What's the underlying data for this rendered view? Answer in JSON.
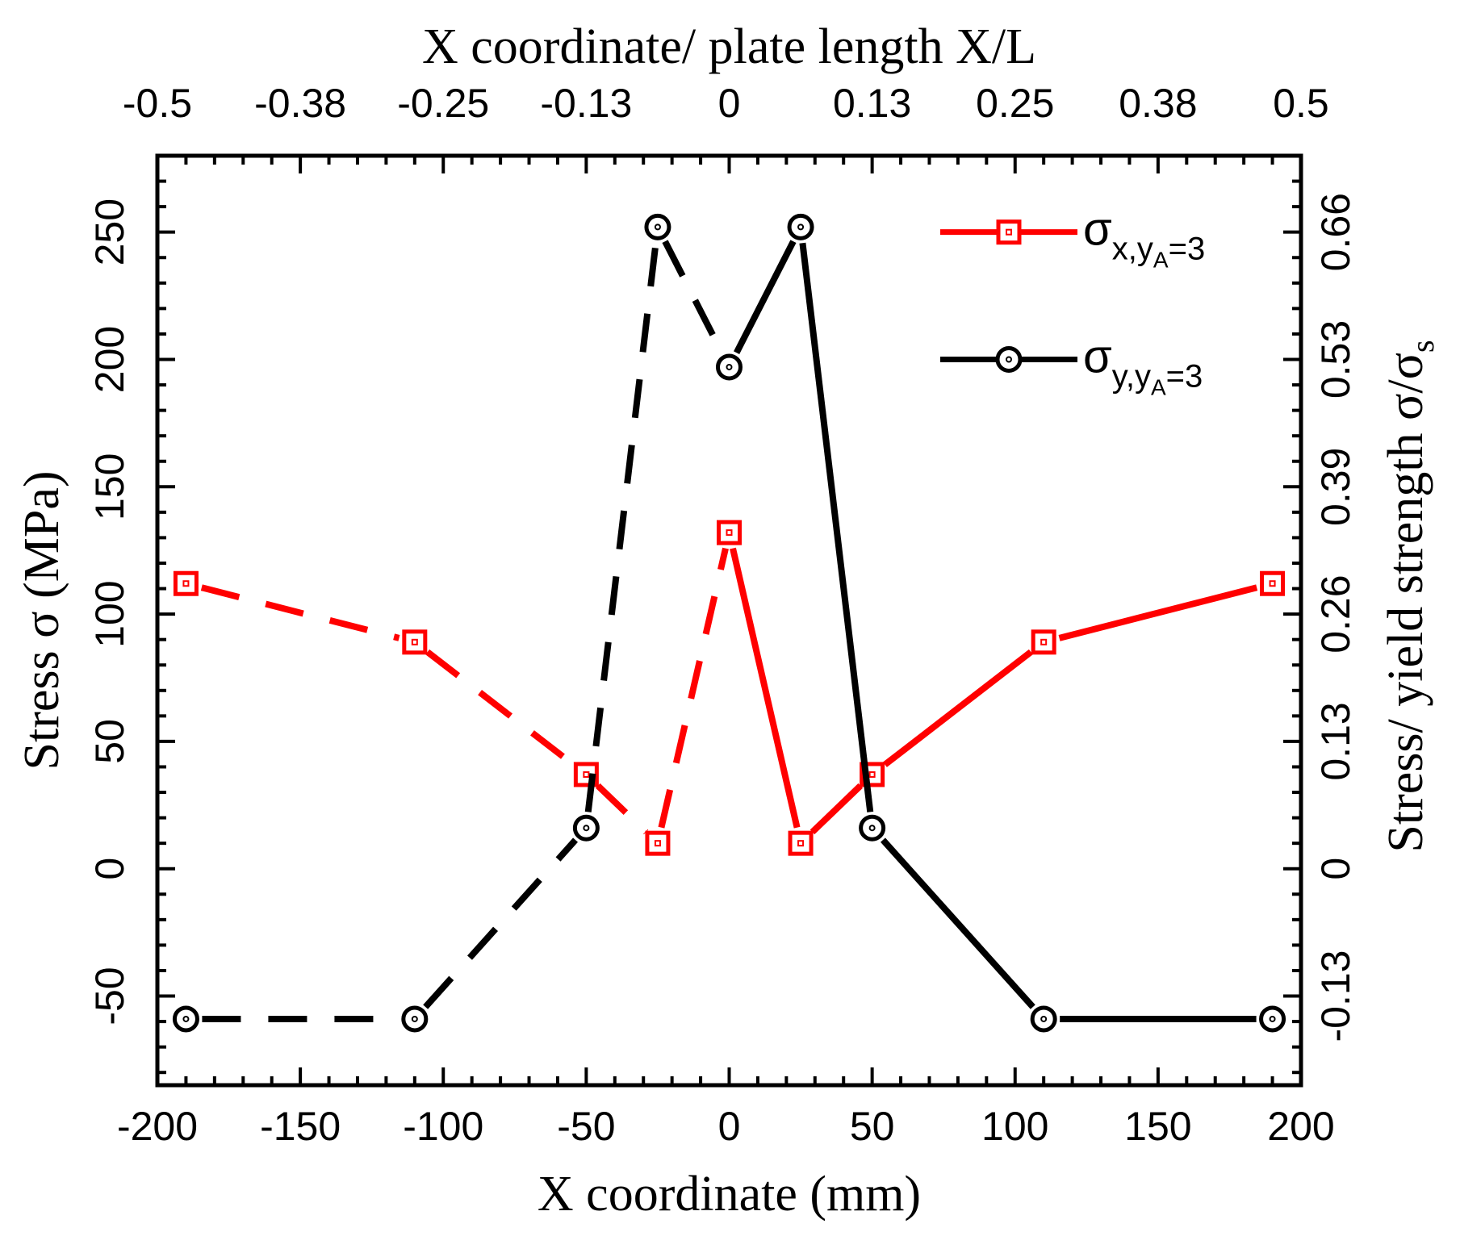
{
  "chart_data": {
    "type": "line",
    "xlabel": "X coordinate (mm)",
    "ylabel": "Stress σ (MPa)",
    "x2label": "X coordinate/ plate length X/L",
    "y2label": {
      "main": "Stress/ yield strength σ/σ",
      "sub": "s"
    },
    "xlim": [
      -200,
      200
    ],
    "ylim": [
      -85,
      280
    ],
    "x_ticks": [
      -200,
      -150,
      -100,
      -50,
      0,
      50,
      100,
      150,
      200
    ],
    "y_ticks": [
      -50,
      0,
      50,
      100,
      150,
      200,
      250
    ],
    "x2_ticks": [
      {
        "value": -200,
        "label": "-0.5"
      },
      {
        "value": -150,
        "label": "-0.38"
      },
      {
        "value": -100,
        "label": "-0.25"
      },
      {
        "value": -50,
        "label": "-0.13"
      },
      {
        "value": 0,
        "label": "0"
      },
      {
        "value": 50,
        "label": "0.13"
      },
      {
        "value": 100,
        "label": "0.25"
      },
      {
        "value": 150,
        "label": "0.38"
      },
      {
        "value": 200,
        "label": "0.5"
      }
    ],
    "y2_ticks": [
      {
        "value": -50,
        "label": "-0.13"
      },
      {
        "value": 0,
        "label": "0"
      },
      {
        "value": 50,
        "label": "0.13"
      },
      {
        "value": 100,
        "label": "0.26"
      },
      {
        "value": 150,
        "label": "0.39"
      },
      {
        "value": 200,
        "label": "0.53"
      },
      {
        "value": 250,
        "label": "0.66"
      }
    ],
    "series": [
      {
        "name": "σx,yA=3",
        "label": {
          "sigma": "σ",
          "sub": "x,y",
          "subsub": "A",
          "tail": "=3"
        },
        "color": "#ff0000",
        "marker": "square",
        "x": [
          -190,
          -110,
          -50,
          -25,
          0,
          25,
          50,
          110,
          190
        ],
        "y": [
          112,
          89,
          37,
          10,
          132,
          10,
          37,
          89,
          112
        ],
        "dashed_segments": [
          0,
          1,
          2,
          3
        ]
      },
      {
        "name": "σy,yA=3",
        "label": {
          "sigma": "σ",
          "sub": "y,y",
          "subsub": "A",
          "tail": "=3"
        },
        "color": "#000000",
        "marker": "circle",
        "x": [
          -190,
          -110,
          -50,
          -25,
          0,
          25,
          50,
          110,
          190
        ],
        "y": [
          -59,
          -59,
          16,
          252,
          197,
          252,
          16,
          -59,
          -59
        ],
        "dashed_segments": [
          0,
          1,
          2,
          3
        ]
      }
    ],
    "legend_position": "top-right",
    "grid": false
  }
}
